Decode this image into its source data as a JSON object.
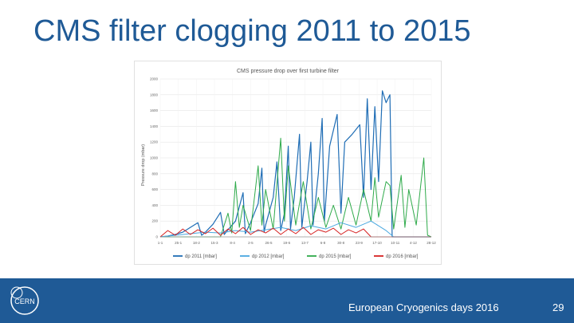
{
  "slide": {
    "title": "CMS filter clogging 2011 to 2015",
    "footer_text": "European Cryogenics days 2016",
    "page_number": "29",
    "logo_text": "CERN"
  },
  "colors": {
    "title": "#1f5a96",
    "footer_bar": "#1f5a96",
    "series": [
      "#1f6db5",
      "#4aa8e0",
      "#2eaa4a",
      "#d62222"
    ]
  },
  "chart_data": {
    "type": "line",
    "title": "CMS pressure drop over first turbine filter",
    "ylabel": "Pressure drop (mbar)",
    "xlabel": "",
    "ylim": [
      0,
      2000
    ],
    "yticks": [
      0,
      200,
      400,
      600,
      800,
      1000,
      1200,
      1400,
      1600,
      1800,
      2000
    ],
    "xlim": [
      0,
      36
    ],
    "xtick_labels": [
      "1-1",
      "25-1",
      "18-2",
      "15-3",
      "8-4",
      "2-5",
      "26-5",
      "19-6",
      "13-7",
      "6-8",
      "30-8",
      "23-9",
      "17-10",
      "10-11",
      "4-12",
      "28-12"
    ],
    "grid": true,
    "legend_position": "bottom",
    "series": [
      {
        "name": "dp 2011 [mbar]",
        "points": [
          [
            0,
            0
          ],
          [
            1,
            10
          ],
          [
            2,
            30
          ],
          [
            3,
            60
          ],
          [
            4,
            120
          ],
          [
            5,
            180
          ],
          [
            5.5,
            20
          ],
          [
            6,
            60
          ],
          [
            7,
            160
          ],
          [
            8,
            310
          ],
          [
            8.5,
            30
          ],
          [
            9,
            90
          ],
          [
            10,
            200
          ],
          [
            11,
            560
          ],
          [
            11.3,
            40
          ],
          [
            12,
            180
          ],
          [
            13,
            420
          ],
          [
            13.5,
            870
          ],
          [
            13.8,
            60
          ],
          [
            14,
            150
          ],
          [
            15,
            500
          ],
          [
            15.5,
            950
          ],
          [
            16,
            80
          ],
          [
            16.5,
            300
          ],
          [
            17,
            1150
          ],
          [
            17.3,
            100
          ],
          [
            17.8,
            500
          ],
          [
            18.5,
            1300
          ],
          [
            18.8,
            120
          ],
          [
            19.5,
            700
          ],
          [
            20,
            1200
          ],
          [
            20.3,
            150
          ],
          [
            21,
            800
          ],
          [
            21.5,
            1500
          ],
          [
            21.8,
            200
          ],
          [
            22.5,
            1150
          ],
          [
            23.5,
            1550
          ],
          [
            24,
            300
          ],
          [
            24.5,
            1200
          ],
          [
            25.5,
            1300
          ],
          [
            26.5,
            1420
          ],
          [
            27,
            500
          ],
          [
            27.5,
            1750
          ],
          [
            28,
            600
          ],
          [
            28.5,
            1650
          ],
          [
            29,
            700
          ],
          [
            29.5,
            1850
          ],
          [
            30,
            1700
          ],
          [
            30.5,
            1800
          ],
          [
            30.8,
            0
          ],
          [
            31,
            0
          ],
          [
            36,
            0
          ]
        ]
      },
      {
        "name": "dp 2012 [mbar]",
        "points": [
          [
            0,
            0
          ],
          [
            2,
            20
          ],
          [
            4,
            40
          ],
          [
            6,
            60
          ],
          [
            8,
            50
          ],
          [
            10,
            80
          ],
          [
            12,
            60
          ],
          [
            14,
            90
          ],
          [
            16,
            120
          ],
          [
            18,
            80
          ],
          [
            20,
            140
          ],
          [
            22,
            100
          ],
          [
            24,
            180
          ],
          [
            26,
            120
          ],
          [
            28,
            200
          ],
          [
            30,
            80
          ],
          [
            31,
            0
          ],
          [
            36,
            0
          ]
        ]
      },
      {
        "name": "dp 2015 [mbar]",
        "points": [
          [
            0,
            0
          ],
          [
            8,
            0
          ],
          [
            9,
            300
          ],
          [
            9.5,
            50
          ],
          [
            10,
            700
          ],
          [
            10.5,
            120
          ],
          [
            11,
            400
          ],
          [
            12,
            80
          ],
          [
            13,
            900
          ],
          [
            13.5,
            150
          ],
          [
            14,
            600
          ],
          [
            15,
            100
          ],
          [
            16,
            1250
          ],
          [
            16.5,
            200
          ],
          [
            17,
            900
          ],
          [
            18,
            150
          ],
          [
            19,
            700
          ],
          [
            20,
            100
          ],
          [
            21,
            500
          ],
          [
            22,
            120
          ],
          [
            23,
            400
          ],
          [
            24,
            100
          ],
          [
            25,
            500
          ],
          [
            26,
            150
          ],
          [
            27,
            600
          ],
          [
            28,
            200
          ],
          [
            28.5,
            750
          ],
          [
            29,
            250
          ],
          [
            30,
            700
          ],
          [
            30.5,
            650
          ],
          [
            31,
            100
          ],
          [
            32,
            780
          ],
          [
            32.5,
            120
          ],
          [
            33,
            600
          ],
          [
            34,
            150
          ],
          [
            35,
            1000
          ],
          [
            35.5,
            20
          ],
          [
            36,
            0
          ]
        ]
      },
      {
        "name": "dp 2016 [mbar]",
        "points": [
          [
            0,
            0
          ],
          [
            1,
            80
          ],
          [
            2,
            20
          ],
          [
            3,
            100
          ],
          [
            4,
            30
          ],
          [
            5,
            90
          ],
          [
            6,
            40
          ],
          [
            7,
            110
          ],
          [
            8,
            20
          ],
          [
            9,
            100
          ],
          [
            10,
            40
          ],
          [
            11,
            120
          ],
          [
            12,
            30
          ],
          [
            13,
            90
          ],
          [
            14,
            50
          ],
          [
            15,
            110
          ],
          [
            16,
            30
          ],
          [
            17,
            100
          ],
          [
            18,
            40
          ],
          [
            19,
            120
          ],
          [
            20,
            30
          ],
          [
            21,
            90
          ],
          [
            22,
            60
          ],
          [
            23,
            110
          ],
          [
            24,
            30
          ],
          [
            25,
            90
          ],
          [
            26,
            50
          ],
          [
            27,
            100
          ],
          [
            28,
            0
          ],
          [
            36,
            0
          ]
        ]
      }
    ]
  }
}
